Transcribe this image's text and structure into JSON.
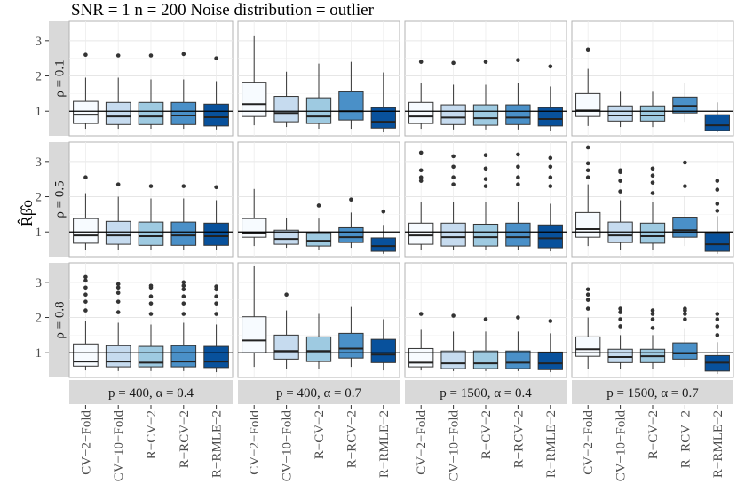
{
  "chart_data": {
    "type": "box",
    "title": "SNR = 1 n = 200 Noise distribution = outlier",
    "ylabel": "R̂β̂o",
    "ylim": [
      0.3,
      3.55
    ],
    "yticks": [
      1,
      2,
      3
    ],
    "reference_line": 1,
    "methods": [
      "CV−2−Fold",
      "CV−10−Fold",
      "R−CV−2",
      "R−RCV−2",
      "R−RMLE−2"
    ],
    "method_colors": [
      "#f7fbff",
      "#c6dbef",
      "#9ecae1",
      "#4a90c8",
      "#08519c"
    ],
    "columns": [
      "p = 400, α = 0.4",
      "p = 400, α = 0.7",
      "p = 1500, α = 0.4",
      "p = 1500, α = 0.7"
    ],
    "rows": [
      "ρ = 0.1",
      "ρ = 0.5",
      "ρ = 0.8"
    ],
    "panels": [
      [
        {
          "boxes": [
            {
              "min": 0.5,
              "q1": 0.65,
              "med": 0.9,
              "q3": 1.28,
              "max": 1.95,
              "out": [
                2.6
              ]
            },
            {
              "min": 0.5,
              "q1": 0.62,
              "med": 0.85,
              "q3": 1.25,
              "max": 1.95,
              "out": [
                2.58
              ]
            },
            {
              "min": 0.5,
              "q1": 0.62,
              "med": 0.85,
              "q3": 1.25,
              "max": 1.9,
              "out": [
                2.58
              ]
            },
            {
              "min": 0.5,
              "q1": 0.62,
              "med": 0.88,
              "q3": 1.25,
              "max": 1.9,
              "out": [
                2.62
              ]
            },
            {
              "min": 0.48,
              "q1": 0.58,
              "med": 0.83,
              "q3": 1.2,
              "max": 1.85,
              "out": [
                2.5
              ]
            }
          ]
        },
        {
          "boxes": [
            {
              "min": 0.6,
              "q1": 0.85,
              "med": 1.2,
              "q3": 1.82,
              "max": 3.15,
              "out": []
            },
            {
              "min": 0.55,
              "q1": 0.7,
              "med": 0.95,
              "q3": 1.42,
              "max": 2.12,
              "out": []
            },
            {
              "min": 0.5,
              "q1": 0.65,
              "med": 0.85,
              "q3": 1.38,
              "max": 2.35,
              "out": []
            },
            {
              "min": 0.5,
              "q1": 0.75,
              "med": 1.0,
              "q3": 1.55,
              "max": 2.4,
              "out": []
            },
            {
              "min": 0.4,
              "q1": 0.52,
              "med": 0.7,
              "q3": 1.1,
              "max": 2.1,
              "out": []
            }
          ]
        },
        {
          "boxes": [
            {
              "min": 0.5,
              "q1": 0.65,
              "med": 0.85,
              "q3": 1.25,
              "max": 1.8,
              "out": [
                2.4
              ]
            },
            {
              "min": 0.48,
              "q1": 0.62,
              "med": 0.82,
              "q3": 1.18,
              "max": 1.75,
              "out": [
                2.37
              ]
            },
            {
              "min": 0.48,
              "q1": 0.6,
              "med": 0.8,
              "q3": 1.18,
              "max": 1.75,
              "out": [
                2.4
              ]
            },
            {
              "min": 0.48,
              "q1": 0.62,
              "med": 0.82,
              "q3": 1.18,
              "max": 1.8,
              "out": [
                2.45
              ]
            },
            {
              "min": 0.45,
              "q1": 0.58,
              "med": 0.78,
              "q3": 1.1,
              "max": 1.7,
              "out": [
                2.27
              ]
            }
          ]
        },
        {
          "boxes": [
            {
              "min": 0.58,
              "q1": 0.85,
              "med": 1.02,
              "q3": 1.5,
              "max": 2.2,
              "out": [
                2.75
              ]
            },
            {
              "min": 0.55,
              "q1": 0.72,
              "med": 0.88,
              "q3": 1.15,
              "max": 1.55,
              "out": []
            },
            {
              "min": 0.55,
              "q1": 0.72,
              "med": 0.88,
              "q3": 1.15,
              "max": 1.55,
              "out": []
            },
            {
              "min": 0.7,
              "q1": 0.95,
              "med": 1.15,
              "q3": 1.4,
              "max": 1.8,
              "out": []
            },
            {
              "min": 0.4,
              "q1": 0.45,
              "med": 0.6,
              "q3": 0.9,
              "max": 1.25,
              "out": []
            }
          ]
        }
      ],
      [
        {
          "boxes": [
            {
              "min": 0.5,
              "q1": 0.68,
              "med": 0.9,
              "q3": 1.38,
              "max": 2.1,
              "out": [
                2.55
              ]
            },
            {
              "min": 0.5,
              "q1": 0.65,
              "med": 0.9,
              "q3": 1.3,
              "max": 2.0,
              "out": [
                2.35
              ]
            },
            {
              "min": 0.5,
              "q1": 0.62,
              "med": 0.88,
              "q3": 1.28,
              "max": 1.95,
              "out": [
                2.3
              ]
            },
            {
              "min": 0.5,
              "q1": 0.62,
              "med": 0.9,
              "q3": 1.28,
              "max": 1.95,
              "out": [
                2.3
              ]
            },
            {
              "min": 0.48,
              "q1": 0.62,
              "med": 0.88,
              "q3": 1.25,
              "max": 1.9,
              "out": [
                2.27
              ]
            }
          ]
        },
        {
          "boxes": [
            {
              "min": 0.6,
              "q1": 0.85,
              "med": 0.98,
              "q3": 1.38,
              "max": 2.22,
              "out": []
            },
            {
              "min": 0.55,
              "q1": 0.65,
              "med": 0.8,
              "q3": 1.05,
              "max": 1.4,
              "out": []
            },
            {
              "min": 0.5,
              "q1": 0.6,
              "med": 0.75,
              "q3": 0.98,
              "max": 1.38,
              "out": [
                1.75
              ]
            },
            {
              "min": 0.55,
              "q1": 0.7,
              "med": 0.85,
              "q3": 1.12,
              "max": 1.55,
              "out": [
                1.92
              ]
            },
            {
              "min": 0.38,
              "q1": 0.45,
              "med": 0.6,
              "q3": 0.83,
              "max": 1.2,
              "out": [
                1.58
              ]
            }
          ]
        },
        {
          "boxes": [
            {
              "min": 0.5,
              "q1": 0.65,
              "med": 0.9,
              "q3": 1.25,
              "max": 1.85,
              "out": [
                2.45,
                2.55,
                2.75,
                3.25
              ]
            },
            {
              "min": 0.48,
              "q1": 0.6,
              "med": 0.85,
              "q3": 1.25,
              "max": 1.85,
              "out": [
                2.35,
                2.55,
                2.85,
                3.15
              ]
            },
            {
              "min": 0.48,
              "q1": 0.6,
              "med": 0.85,
              "q3": 1.22,
              "max": 1.85,
              "out": [
                2.3,
                2.5,
                2.8,
                3.18
              ]
            },
            {
              "min": 0.48,
              "q1": 0.6,
              "med": 0.85,
              "q3": 1.25,
              "max": 1.85,
              "out": [
                2.35,
                2.55,
                2.85,
                3.2
              ]
            },
            {
              "min": 0.45,
              "q1": 0.55,
              "med": 0.82,
              "q3": 1.2,
              "max": 1.8,
              "out": [
                2.3,
                2.55,
                2.85,
                3.1
              ]
            }
          ]
        },
        {
          "boxes": [
            {
              "min": 0.6,
              "q1": 0.85,
              "med": 1.08,
              "q3": 1.55,
              "max": 2.35,
              "out": [
                2.55,
                2.75,
                2.95,
                3.4
              ]
            },
            {
              "min": 0.5,
              "q1": 0.7,
              "med": 0.9,
              "q3": 1.28,
              "max": 1.9,
              "out": [
                2.15,
                2.45,
                2.7,
                2.75
              ]
            },
            {
              "min": 0.5,
              "q1": 0.68,
              "med": 0.88,
              "q3": 1.25,
              "max": 1.85,
              "out": [
                2.1,
                2.4,
                2.6,
                2.8
              ]
            },
            {
              "min": 0.6,
              "q1": 0.85,
              "med": 1.05,
              "q3": 1.42,
              "max": 2.0,
              "out": [
                2.3,
                2.97
              ]
            },
            {
              "min": 0.38,
              "q1": 0.45,
              "med": 0.65,
              "q3": 0.98,
              "max": 1.45,
              "out": [
                1.6,
                1.8,
                2.2,
                2.45
              ]
            }
          ]
        }
      ],
      [
        {
          "boxes": [
            {
              "min": 0.5,
              "q1": 0.62,
              "med": 0.75,
              "q3": 1.25,
              "max": 1.9,
              "out": [
                2.2,
                2.45,
                2.65,
                2.85,
                3.05,
                3.15
              ]
            },
            {
              "min": 0.48,
              "q1": 0.6,
              "med": 0.75,
              "q3": 1.2,
              "max": 1.85,
              "out": [
                2.15,
                2.45,
                2.7,
                2.85,
                2.95
              ]
            },
            {
              "min": 0.48,
              "q1": 0.6,
              "med": 0.72,
              "q3": 1.18,
              "max": 1.8,
              "out": [
                2.1,
                2.4,
                2.6,
                2.85,
                2.9
              ]
            },
            {
              "min": 0.48,
              "q1": 0.6,
              "med": 0.75,
              "q3": 1.2,
              "max": 1.85,
              "out": [
                2.1,
                2.4,
                2.6,
                2.8,
                2.9,
                3.0
              ]
            },
            {
              "min": 0.45,
              "q1": 0.58,
              "med": 0.75,
              "q3": 1.18,
              "max": 1.8,
              "out": [
                2.1,
                2.4,
                2.6,
                2.8,
                2.88
              ]
            }
          ]
        },
        {
          "boxes": [
            {
              "min": 0.6,
              "q1": 1.0,
              "med": 1.35,
              "q3": 2.02,
              "max": 3.45,
              "out": []
            },
            {
              "min": 0.55,
              "q1": 0.82,
              "med": 1.05,
              "q3": 1.5,
              "max": 2.2,
              "out": [
                2.65
              ]
            },
            {
              "min": 0.55,
              "q1": 0.75,
              "med": 1.05,
              "q3": 1.45,
              "max": 2.1,
              "out": []
            },
            {
              "min": 0.6,
              "q1": 0.85,
              "med": 1.12,
              "q3": 1.55,
              "max": 2.3,
              "out": []
            },
            {
              "min": 0.5,
              "q1": 0.72,
              "med": 0.95,
              "q3": 1.38,
              "max": 1.95,
              "out": []
            }
          ]
        },
        {
          "boxes": [
            {
              "min": 0.5,
              "q1": 0.6,
              "med": 0.72,
              "q3": 1.12,
              "max": 1.65,
              "out": [
                2.1
              ]
            },
            {
              "min": 0.48,
              "q1": 0.55,
              "med": 0.7,
              "q3": 1.05,
              "max": 1.6,
              "out": [
                2.05
              ]
            },
            {
              "min": 0.48,
              "q1": 0.55,
              "med": 0.7,
              "q3": 1.05,
              "max": 1.6,
              "out": [
                1.95
              ]
            },
            {
              "min": 0.48,
              "q1": 0.55,
              "med": 0.72,
              "q3": 1.05,
              "max": 1.6,
              "out": [
                2.0
              ]
            },
            {
              "min": 0.45,
              "q1": 0.52,
              "med": 0.7,
              "q3": 1.02,
              "max": 1.55,
              "out": [
                1.9
              ]
            }
          ]
        },
        {
          "boxes": [
            {
              "min": 0.55,
              "q1": 0.9,
              "med": 1.1,
              "q3": 1.45,
              "max": 2.0,
              "out": [
                2.25,
                2.5,
                2.65,
                2.8
              ]
            },
            {
              "min": 0.55,
              "q1": 0.72,
              "med": 0.88,
              "q3": 1.1,
              "max": 1.5,
              "out": [
                1.75,
                1.95,
                2.15,
                2.25
              ]
            },
            {
              "min": 0.55,
              "q1": 0.72,
              "med": 0.9,
              "q3": 1.1,
              "max": 1.5,
              "out": [
                1.7,
                1.95,
                2.1,
                2.2
              ]
            },
            {
              "min": 0.6,
              "q1": 0.82,
              "med": 0.98,
              "q3": 1.28,
              "max": 1.7,
              "out": [
                1.95,
                2.1,
                2.2,
                2.25
              ]
            },
            {
              "min": 0.4,
              "q1": 0.48,
              "med": 0.72,
              "q3": 0.92,
              "max": 1.3,
              "out": [
                1.5,
                1.75,
                1.95,
                2.1
              ]
            }
          ]
        }
      ]
    ]
  }
}
